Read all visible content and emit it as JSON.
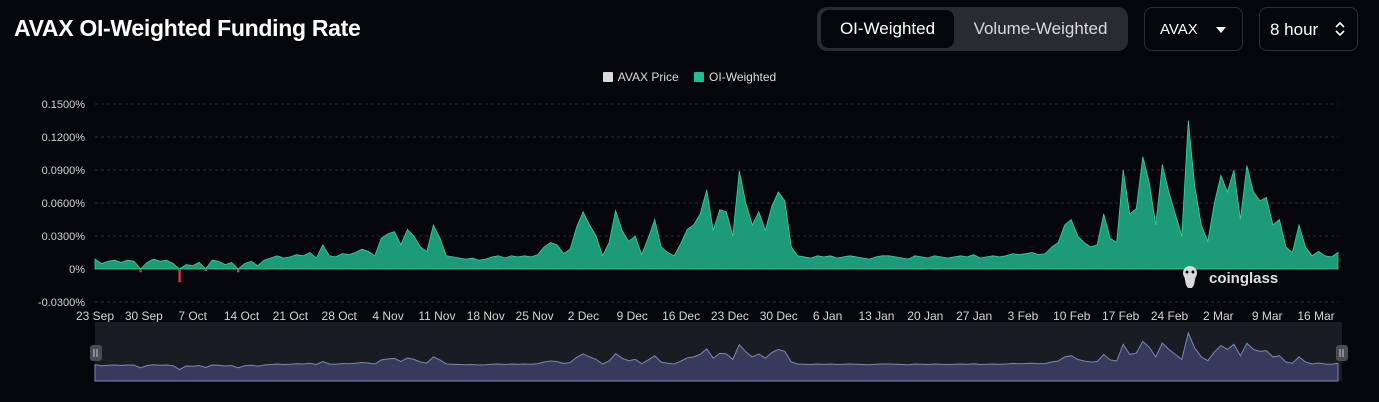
{
  "header": {
    "title": "AVAX OI-Weighted Funding Rate",
    "toggle": {
      "options": [
        "OI-Weighted",
        "Volume-Weighted"
      ],
      "active": "OI-Weighted"
    },
    "symbol_select": {
      "value": "AVAX",
      "icon": "caret-down-icon"
    },
    "interval_select": {
      "value": "8 hour",
      "icon": "updown-chevron-icon"
    }
  },
  "legend": [
    {
      "label": "AVAX Price",
      "color": "#d9d9d9"
    },
    {
      "label": "OI-Weighted",
      "color": "#1fc08d"
    }
  ],
  "watermark": {
    "text": "coinglass",
    "icon": "coinglass-logo-icon"
  },
  "colors": {
    "positive": "#1fa882",
    "negative": "#e0334b",
    "navigator_fill": "#363b5c",
    "navigator_line": "#7d86b8"
  },
  "chart_data": {
    "type": "area",
    "ylabel": "",
    "xlabel": "",
    "y_ticks": [
      "0.1500%",
      "0.1200%",
      "0.0900%",
      "0.0600%",
      "0.0300%",
      "0%",
      "-0.0300%"
    ],
    "y_tick_values": [
      0.15,
      0.12,
      0.09,
      0.06,
      0.03,
      0,
      -0.03
    ],
    "ylim": [
      -0.03,
      0.15
    ],
    "x_ticks": [
      "23 Sep",
      "30 Sep",
      "7 Oct",
      "14 Oct",
      "21 Oct",
      "28 Oct",
      "4 Nov",
      "11 Nov",
      "18 Nov",
      "25 Nov",
      "2 Dec",
      "9 Dec",
      "16 Dec",
      "23 Dec",
      "30 Dec",
      "6 Jan",
      "13 Jan",
      "20 Jan",
      "27 Jan",
      "3 Feb",
      "10 Feb",
      "17 Feb",
      "24 Feb",
      "2 Mar",
      "9 Mar",
      "16 Mar"
    ],
    "x_start": "23 Sep",
    "x_end": "19 Mar",
    "grid": true,
    "legend_position": "top-center",
    "series": [
      {
        "name": "AVAX Price",
        "visible": false,
        "values": []
      },
      {
        "name": "OI-Weighted",
        "unit": "%",
        "date_start": "23 Sep",
        "date_end": "19 Mar",
        "values": [
          0.009,
          0.005,
          0.007,
          0.008,
          0.006,
          0.008,
          0.007,
          -0.003,
          0.006,
          0.009,
          0.007,
          0.008,
          0.005,
          -0.012,
          0.004,
          0.003,
          0.006,
          -0.002,
          0.008,
          0.007,
          0.004,
          0.006,
          -0.003,
          0.005,
          0.007,
          0.003,
          0.008,
          0.01,
          0.012,
          0.01,
          0.011,
          0.013,
          0.012,
          0.015,
          0.01,
          0.022,
          0.012,
          0.011,
          0.014,
          0.013,
          0.015,
          0.018,
          0.016,
          0.012,
          0.028,
          0.032,
          0.034,
          0.022,
          0.036,
          0.03,
          0.02,
          0.016,
          0.04,
          0.028,
          0.012,
          0.011,
          0.01,
          0.009,
          0.01,
          0.008,
          0.009,
          0.011,
          0.012,
          0.01,
          0.012,
          0.011,
          0.012,
          0.011,
          0.013,
          0.02,
          0.024,
          0.022,
          0.014,
          0.018,
          0.038,
          0.052,
          0.04,
          0.03,
          0.012,
          0.024,
          0.053,
          0.035,
          0.025,
          0.03,
          0.013,
          0.028,
          0.045,
          0.02,
          0.015,
          0.012,
          0.023,
          0.036,
          0.04,
          0.05,
          0.072,
          0.035,
          0.054,
          0.052,
          0.03,
          0.089,
          0.06,
          0.04,
          0.052,
          0.035,
          0.057,
          0.07,
          0.062,
          0.02,
          0.012,
          0.011,
          0.01,
          0.012,
          0.011,
          0.012,
          0.01,
          0.011,
          0.012,
          0.011,
          0.01,
          0.009,
          0.011,
          0.012,
          0.012,
          0.011,
          0.01,
          0.009,
          0.012,
          0.011,
          0.01,
          0.012,
          0.011,
          0.01,
          0.011,
          0.012,
          0.011,
          0.013,
          0.01,
          0.011,
          0.012,
          0.011,
          0.012,
          0.014,
          0.013,
          0.014,
          0.015,
          0.013,
          0.014,
          0.02,
          0.024,
          0.04,
          0.045,
          0.03,
          0.024,
          0.02,
          0.022,
          0.05,
          0.028,
          0.024,
          0.09,
          0.05,
          0.055,
          0.102,
          0.078,
          0.04,
          0.095,
          0.07,
          0.05,
          0.03,
          0.135,
          0.075,
          0.04,
          0.025,
          0.06,
          0.085,
          0.07,
          0.09,
          0.045,
          0.094,
          0.07,
          0.062,
          0.065,
          0.04,
          0.045,
          0.02,
          0.015,
          0.04,
          0.02,
          0.012,
          0.016,
          0.012,
          0.011,
          0.015
        ]
      }
    ]
  }
}
